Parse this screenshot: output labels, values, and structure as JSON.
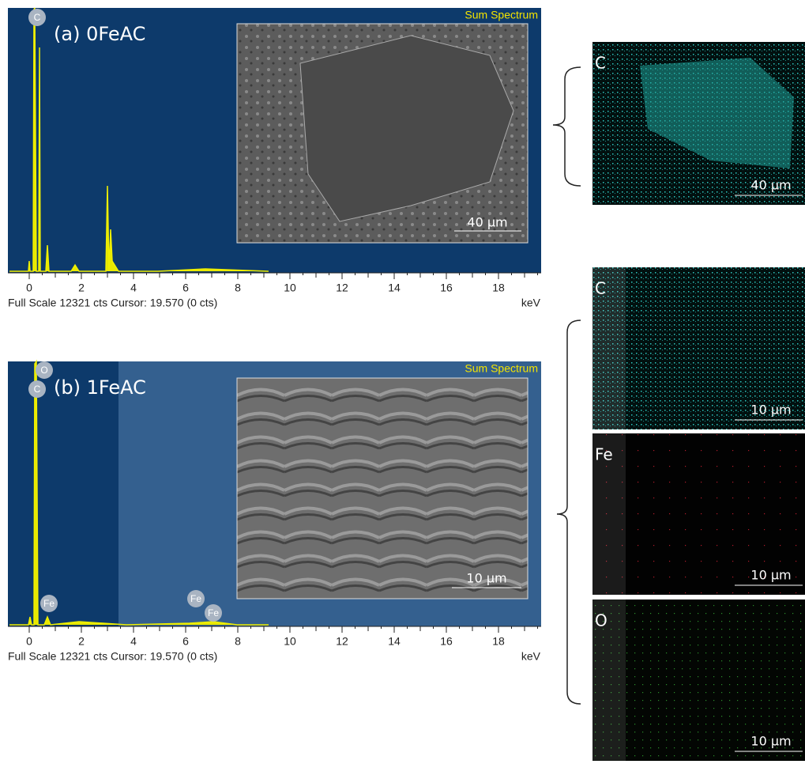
{
  "panels": [
    {
      "label": "(a) 0FeAC",
      "spectrum_title": "Sum Spectrum",
      "peak_labels": [
        "C"
      ],
      "x_ticks": [
        0,
        2,
        4,
        6,
        8,
        10,
        12,
        14,
        16,
        18
      ],
      "x_unit": "keV",
      "footer": "Full Scale 12321 cts Cursor: 19.570  (0 cts)",
      "sem_scale": "40 µm",
      "maps": [
        {
          "element": "C",
          "scale": "40 µm"
        }
      ]
    },
    {
      "label": "(b) 1FeAC",
      "spectrum_title": "Sum Spectrum",
      "peak_labels": [
        "O",
        "C",
        "Fe",
        "Fe",
        "Fe"
      ],
      "x_ticks": [
        0,
        2,
        4,
        6,
        8,
        10,
        12,
        14,
        16,
        18
      ],
      "x_unit": "keV",
      "footer": "Full Scale 12321 cts Cursor: 19.570  (0 cts)",
      "sem_scale": "10 µm",
      "maps": [
        {
          "element": "C",
          "scale": "10 µm"
        },
        {
          "element": "Fe",
          "scale": "10 µm"
        },
        {
          "element": "O",
          "scale": "10 µm"
        }
      ]
    }
  ]
}
